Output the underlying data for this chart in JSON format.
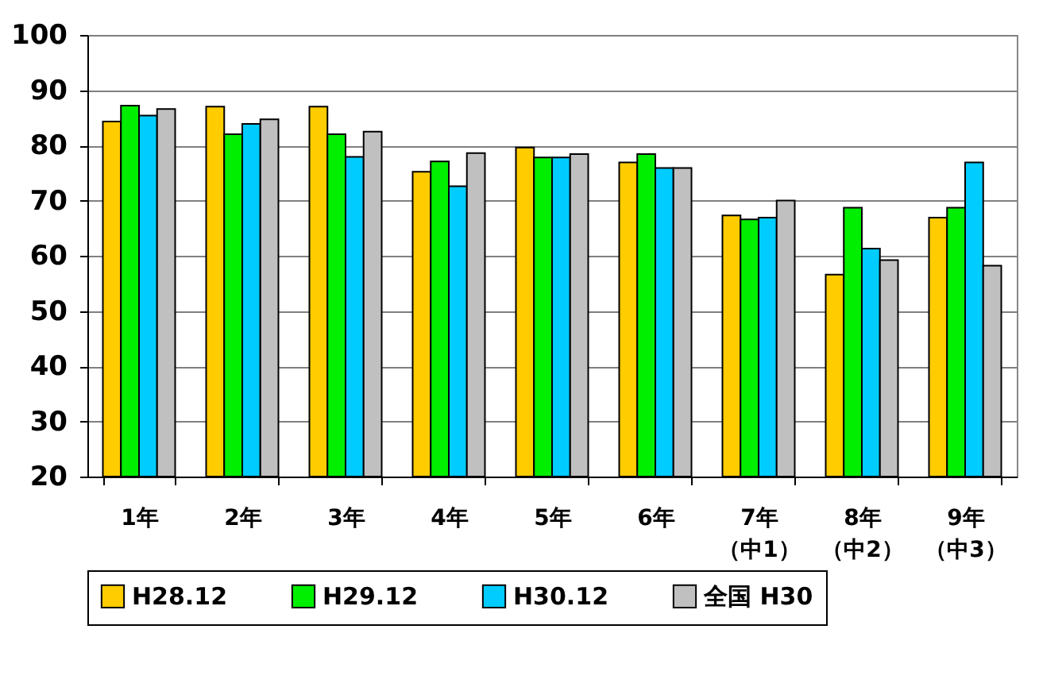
{
  "chart_data": {
    "type": "bar",
    "categories": [
      "1年",
      "2年",
      "3年",
      "4年",
      "5年",
      "6年",
      "7年（中1）",
      "8年（中2）",
      "9年（中3）"
    ],
    "series": [
      {
        "name": "H28.12",
        "color": "#ffcc00",
        "values": [
          84.3,
          87.0,
          87.0,
          75.2,
          79.6,
          76.9,
          67.3,
          56.6,
          66.9
        ]
      },
      {
        "name": "H29.12",
        "color": "#00ee00",
        "values": [
          87.2,
          82.0,
          82.0,
          77.1,
          77.8,
          78.4,
          66.6,
          68.7,
          68.7
        ]
      },
      {
        "name": "H30.12",
        "color": "#00ccff",
        "values": [
          85.4,
          83.9,
          77.9,
          72.6,
          77.8,
          75.9,
          66.9,
          61.3,
          76.9
        ]
      },
      {
        "name": "全国 H30",
        "color": "#c0c0c0",
        "values": [
          86.6,
          84.7,
          82.5,
          78.6,
          78.4,
          75.9,
          70.0,
          59.2,
          58.2
        ]
      }
    ],
    "ylim": [
      20,
      100
    ],
    "yticks": [
      20,
      30,
      40,
      50,
      60,
      70,
      80,
      90,
      100
    ],
    "grid": "y",
    "legend": "bottom"
  }
}
